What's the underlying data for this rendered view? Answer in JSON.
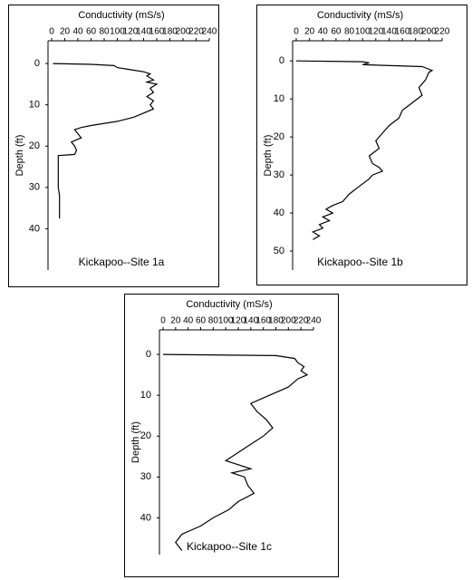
{
  "chart_data": [
    {
      "type": "line",
      "title": "Kickapoo--Site 1a",
      "x_label": "Depth (ft)",
      "y_label": "Conductivity (mS/s)",
      "color": "#000000",
      "x": [
        0,
        0.2,
        0.5,
        1,
        1.5,
        2,
        2.5,
        3,
        4,
        4.5,
        5,
        6,
        7,
        8,
        9,
        10,
        11,
        12,
        13,
        14,
        15,
        15.5,
        16,
        17,
        18,
        19,
        20,
        21,
        22,
        22.3,
        25,
        30,
        32,
        33,
        35,
        37.5
      ],
      "values": [
        2,
        60,
        95,
        100,
        120,
        140,
        150,
        145,
        155,
        145,
        160,
        150,
        155,
        145,
        155,
        150,
        155,
        140,
        125,
        100,
        60,
        45,
        35,
        40,
        45,
        30,
        35,
        38,
        35,
        10,
        10,
        10,
        12,
        12,
        12,
        12
      ],
      "xlim": [
        -5.5,
        50
      ],
      "xticks": [
        0,
        10,
        20,
        30,
        40
      ],
      "ylim": [
        0,
        240
      ],
      "yticks": [
        0,
        20,
        40,
        60,
        80,
        100,
        120,
        140,
        160,
        180,
        200,
        220,
        240
      ]
    },
    {
      "type": "line",
      "title": "Kickapoo--Site 1b",
      "x_label": "Depth (ft)",
      "y_label": "Conductivity (mS/s)",
      "color": "#000000",
      "x": [
        0,
        0.2,
        0.5,
        1,
        1.5,
        2.5,
        3,
        5,
        7,
        9,
        11,
        13,
        15,
        17,
        19,
        21,
        23,
        25,
        27,
        28,
        29,
        30,
        31,
        33,
        35,
        37,
        38,
        39,
        40,
        41,
        42,
        43,
        44,
        45,
        46,
        47
      ],
      "values": [
        0,
        100,
        110,
        100,
        190,
        205,
        200,
        195,
        185,
        190,
        175,
        160,
        155,
        140,
        130,
        120,
        125,
        110,
        115,
        125,
        130,
        115,
        110,
        95,
        80,
        70,
        55,
        45,
        55,
        40,
        50,
        35,
        40,
        25,
        35,
        25
      ],
      "xlim": [
        -5.3,
        55
      ],
      "xticks": [
        0,
        10,
        20,
        30,
        40,
        50
      ],
      "ylim": [
        0,
        220
      ],
      "yticks": [
        0,
        20,
        40,
        60,
        80,
        100,
        120,
        140,
        160,
        180,
        200,
        220
      ]
    },
    {
      "type": "line",
      "title": "Kickapoo--Site 1c",
      "x_label": "Depth (ft)",
      "y_label": "Conductivity (mS/s)",
      "color": "#000000",
      "x": [
        0,
        0.3,
        1,
        2,
        3,
        4,
        5,
        6,
        8,
        10,
        12,
        14,
        16,
        18,
        20,
        22,
        24,
        26,
        28,
        29,
        30,
        32,
        34,
        36,
        38,
        40,
        42,
        44,
        45,
        46,
        48
      ],
      "values": [
        0,
        180,
        210,
        215,
        225,
        220,
        230,
        215,
        200,
        170,
        140,
        150,
        165,
        175,
        160,
        140,
        120,
        100,
        140,
        110,
        130,
        135,
        145,
        120,
        105,
        80,
        60,
        30,
        25,
        20,
        30
      ],
      "xlim": [
        -6,
        49
      ],
      "xticks": [
        0,
        10,
        20,
        30,
        40
      ],
      "ylim": [
        0,
        240
      ],
      "yticks": [
        0,
        20,
        40,
        60,
        80,
        100,
        120,
        140,
        160,
        180,
        200,
        220,
        240
      ]
    }
  ]
}
